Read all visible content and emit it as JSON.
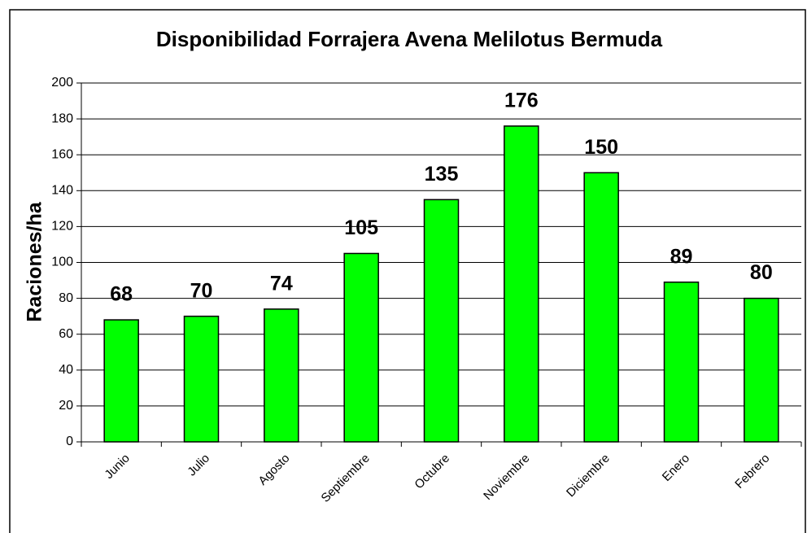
{
  "chart_data": {
    "type": "bar",
    "title": "Disponibilidad Forrajera Avena Melilotus Bermuda",
    "y_label": "Raciones/ha",
    "categories": [
      "Junio",
      "Julio",
      "Agosto",
      "Septiembre",
      "Octubre",
      "Noviembre",
      "Diciembre",
      "Enero",
      "Febrero"
    ],
    "values": [
      68,
      70,
      74,
      105,
      135,
      176,
      150,
      89,
      80
    ],
    "color": "#00ff00",
    "ylim": [
      0,
      200
    ],
    "yticks": [
      0,
      20,
      40,
      60,
      80,
      100,
      120,
      140,
      160,
      180,
      200
    ],
    "grid": true
  }
}
